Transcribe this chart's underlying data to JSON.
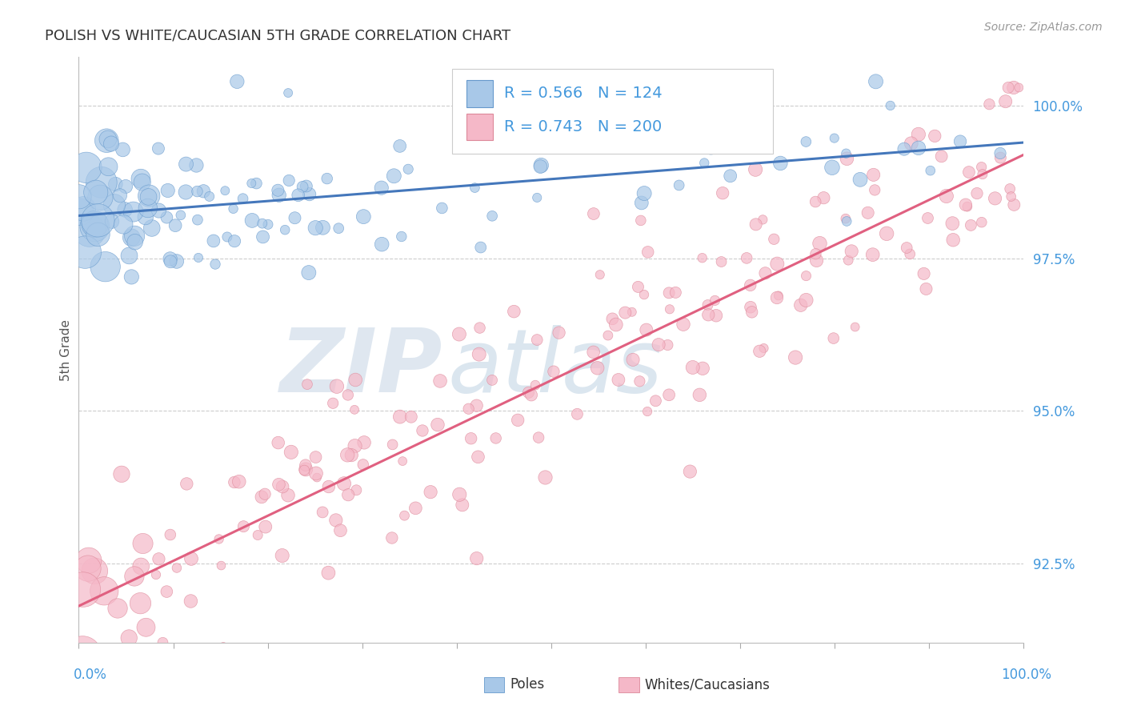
{
  "title": "POLISH VS WHITE/CAUCASIAN 5TH GRADE CORRELATION CHART",
  "source": "Source: ZipAtlas.com",
  "ylabel": "5th Grade",
  "ylabel_right_ticks": [
    92.5,
    95.0,
    97.5,
    100.0
  ],
  "ylabel_right_labels": [
    "92.5%",
    "95.0%",
    "97.5%",
    "100.0%"
  ],
  "xmin": 0.0,
  "xmax": 100.0,
  "ymin": 91.2,
  "ymax": 100.8,
  "poles_R": 0.566,
  "poles_N": 124,
  "caucasian_R": 0.743,
  "caucasian_N": 200,
  "poles_color": "#a8c8e8",
  "poles_edge_color": "#6699cc",
  "poles_line_color": "#4477bb",
  "caucasian_color": "#f5b8c8",
  "caucasian_edge_color": "#dd8899",
  "caucasian_line_color": "#e06080",
  "legend_text_color": "#4499dd",
  "watermark_zip_color": "#c8d8e8",
  "watermark_atlas_color": "#b8cce0",
  "background_color": "#ffffff",
  "title_color": "#333333",
  "axis_label_color": "#4499dd",
  "tick_color": "#4499dd",
  "grid_color": "#cccccc",
  "legend_border_color": "#cccccc",
  "poles_intercept": 98.2,
  "poles_slope": 0.012,
  "caucasian_intercept": 91.8,
  "caucasian_slope": 0.074
}
